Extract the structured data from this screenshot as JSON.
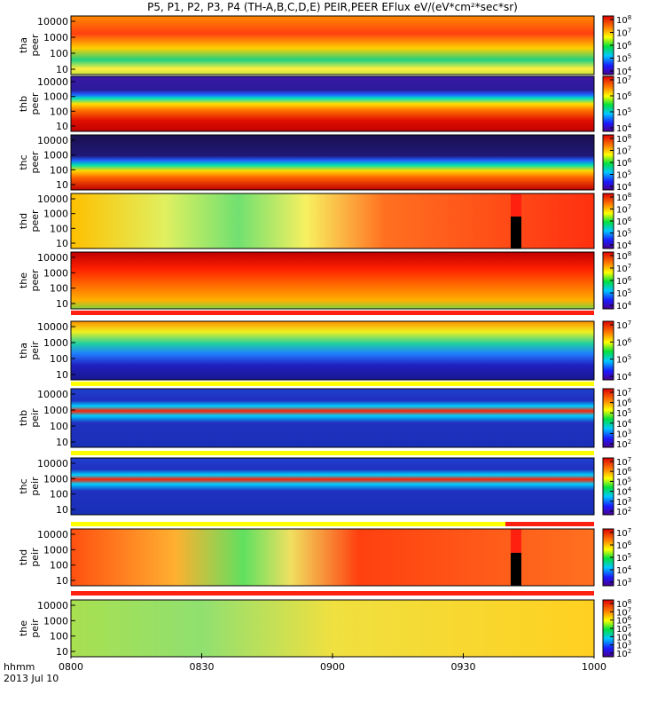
{
  "chart_data": {
    "type": "heatmap",
    "title": "P5, P1, P2, P3, P4 (TH-A,B,C,D,E) PEIR,PEER EFlux eV/(eV*cm²*sec*sr)",
    "x_ticks": [
      "0800",
      "0830",
      "0900",
      "0930",
      "1000"
    ],
    "x_range": [
      "0800",
      "1000"
    ],
    "x_label_top": "hhmm",
    "x_label_bottom": "2013 Jul 10",
    "y_scale": "log",
    "colorbar_scale": "log",
    "panels": [
      {
        "probe": "tha",
        "species": "peer",
        "ylabels": [
          "10000",
          "1000",
          "100",
          "10"
        ],
        "cbar_exponents": [
          "8",
          "7",
          "6",
          "5",
          "4"
        ]
      },
      {
        "probe": "thb",
        "species": "peer",
        "ylabels": [
          "10000",
          "1000",
          "100",
          "10"
        ],
        "cbar_exponents": [
          "7",
          "6",
          "5",
          "4"
        ]
      },
      {
        "probe": "thc",
        "species": "peer",
        "ylabels": [
          "10000",
          "1000",
          "100",
          "10"
        ],
        "cbar_exponents": [
          "8",
          "7",
          "6",
          "5",
          "4"
        ]
      },
      {
        "probe": "thd",
        "species": "peer",
        "ylabels": [
          "10000",
          "1000",
          "100",
          "10"
        ],
        "cbar_exponents": [
          "8",
          "7",
          "6",
          "5",
          "4"
        ]
      },
      {
        "probe": "the",
        "species": "peer",
        "ylabels": [
          "10000",
          "1000",
          "100",
          "10"
        ],
        "cbar_exponents": [
          "8",
          "7",
          "6",
          "5",
          "4"
        ]
      },
      {
        "probe": "tha",
        "species": "peir",
        "ylabels": [
          "10000",
          "1000",
          "100",
          "10"
        ],
        "cbar_exponents": [
          "7",
          "6",
          "5",
          "4"
        ]
      },
      {
        "probe": "thb",
        "species": "peir",
        "ylabels": [
          "10000",
          "1000",
          "100",
          "10"
        ],
        "cbar_exponents": [
          "7",
          "6",
          "5",
          "4",
          "3",
          "2"
        ]
      },
      {
        "probe": "thc",
        "species": "peir",
        "ylabels": [
          "10000",
          "1000",
          "100",
          "10"
        ],
        "cbar_exponents": [
          "7",
          "6",
          "5",
          "4",
          "3",
          "2"
        ]
      },
      {
        "probe": "thd",
        "species": "peir",
        "ylabels": [
          "10000",
          "1000",
          "100",
          "10"
        ],
        "cbar_exponents": [
          "7",
          "6",
          "5",
          "4",
          "3"
        ]
      },
      {
        "probe": "the",
        "species": "peir",
        "ylabels": [
          "10000",
          "1000",
          "100",
          "10"
        ],
        "cbar_exponents": [
          "8",
          "7",
          "6",
          "5",
          "4",
          "3",
          "2"
        ]
      }
    ]
  }
}
